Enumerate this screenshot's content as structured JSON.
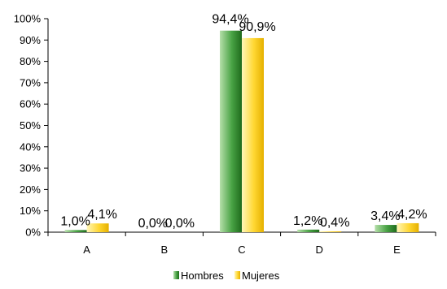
{
  "chart_data": {
    "type": "bar",
    "categories": [
      "A",
      "B",
      "C",
      "D",
      "E"
    ],
    "series": [
      {
        "name": "Hombres",
        "values": [
          1.0,
          0.0,
          94.4,
          1.2,
          3.4
        ],
        "labels": [
          "1,0%",
          "0,0%",
          "94,4%",
          "1,2%",
          "3,4%"
        ]
      },
      {
        "name": "Mujeres",
        "values": [
          4.1,
          0.0,
          90.9,
          0.4,
          4.2
        ],
        "labels": [
          "4,1%",
          "0,0%",
          "90,9%",
          "0,4%",
          "4,2%"
        ]
      }
    ],
    "ylim": [
      0,
      100
    ],
    "yticks": [
      "0%",
      "10%",
      "20%",
      "30%",
      "40%",
      "50%",
      "60%",
      "70%",
      "80%",
      "90%",
      "100%"
    ],
    "legend": "bottom",
    "grid": false,
    "colors": {
      "Hombres": {
        "light": "#b5dfa9",
        "mid": "#48a244",
        "dark": "#1f6b1c"
      },
      "Mujeres": {
        "light": "#fff6b8",
        "mid": "#ffd732",
        "dark": "#e5b000"
      }
    }
  }
}
